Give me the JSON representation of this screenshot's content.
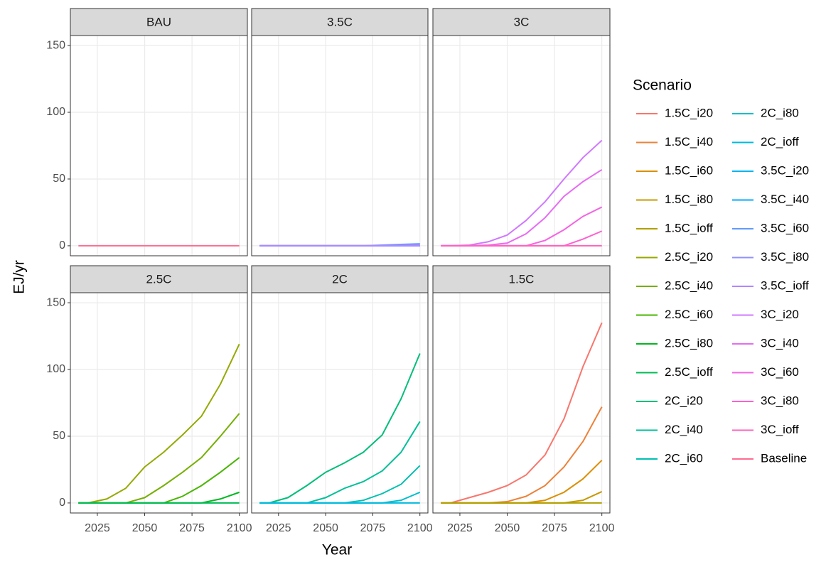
{
  "axis_labels": {
    "x": "Year",
    "y": "EJ/yr"
  },
  "legend": {
    "title": "Scenario"
  },
  "chart_data": [
    {
      "type": "line",
      "title": "BAU",
      "x": [
        2015,
        2020,
        2030,
        2040,
        2050,
        2060,
        2070,
        2080,
        2090,
        2100
      ],
      "xlim": [
        2010.75,
        2104.25
      ],
      "xticks": [
        2025,
        2050,
        2075,
        2100
      ],
      "ylim": [
        -7.5,
        157.5
      ],
      "yticks": [
        0,
        50,
        100,
        150
      ],
      "grid": true,
      "series": [
        {
          "name": "Baseline",
          "color": "#FF6C91",
          "values": [
            0,
            0,
            0,
            0,
            0,
            0,
            0,
            0,
            0,
            0
          ]
        }
      ]
    },
    {
      "type": "line",
      "title": "3.5C",
      "x": [
        2015,
        2020,
        2030,
        2040,
        2050,
        2060,
        2070,
        2080,
        2090,
        2100
      ],
      "xlim": [
        2010.75,
        2104.25
      ],
      "xticks": [
        2025,
        2050,
        2075,
        2100
      ],
      "ylim": [
        -7.5,
        157.5
      ],
      "yticks": [
        0,
        50,
        100,
        150
      ],
      "grid": true,
      "series": [
        {
          "name": "3.5C_i20",
          "color": "#00B4F0",
          "values": [
            0,
            0,
            0,
            0,
            0,
            0,
            0,
            0,
            0,
            0
          ]
        },
        {
          "name": "3.5C_i40",
          "color": "#00ABFD",
          "values": [
            0,
            0,
            0,
            0,
            0,
            0,
            0,
            0,
            0,
            0
          ]
        },
        {
          "name": "3.5C_i60",
          "color": "#619CFF",
          "values": [
            0,
            0,
            0,
            0,
            0,
            0,
            0,
            0.5,
            1,
            1.5
          ]
        },
        {
          "name": "3.5C_i80",
          "color": "#8F91FF",
          "values": [
            0,
            0,
            0,
            0,
            0,
            0,
            0,
            0,
            0.3,
            0.8
          ]
        },
        {
          "name": "3.5C_ioff",
          "color": "#B385FF",
          "values": [
            0,
            0,
            0,
            0,
            0,
            0,
            0,
            0,
            0,
            0
          ]
        }
      ]
    },
    {
      "type": "line",
      "title": "3C",
      "x": [
        2015,
        2020,
        2030,
        2040,
        2050,
        2060,
        2070,
        2080,
        2090,
        2100
      ],
      "xlim": [
        2010.75,
        2104.25
      ],
      "xticks": [
        2025,
        2050,
        2075,
        2100
      ],
      "ylim": [
        -7.5,
        157.5
      ],
      "yticks": [
        0,
        50,
        100,
        150
      ],
      "grid": true,
      "series": [
        {
          "name": "3C_i20",
          "color": "#D078FF",
          "values": [
            0,
            0,
            0.5,
            3,
            8,
            19,
            33,
            50,
            66,
            79
          ]
        },
        {
          "name": "3C_i40",
          "color": "#E76BF3",
          "values": [
            0,
            0,
            0,
            0.5,
            2,
            9,
            21,
            37,
            48,
            57
          ]
        },
        {
          "name": "3C_i60",
          "color": "#F564E3",
          "values": [
            0,
            0,
            0,
            0,
            0,
            0,
            4,
            12,
            22,
            29
          ]
        },
        {
          "name": "3C_i80",
          "color": "#FD61D0",
          "values": [
            0,
            0,
            0,
            0,
            0,
            0,
            0,
            0,
            5,
            11
          ]
        },
        {
          "name": "3C_ioff",
          "color": "#FF62BC",
          "values": [
            0,
            0,
            0,
            0,
            0,
            0,
            0,
            0,
            0,
            0
          ]
        }
      ]
    },
    {
      "type": "line",
      "title": "2.5C",
      "x": [
        2015,
        2020,
        2030,
        2040,
        2050,
        2060,
        2070,
        2080,
        2090,
        2100
      ],
      "xlim": [
        2010.75,
        2104.25
      ],
      "xticks": [
        2025,
        2050,
        2075,
        2100
      ],
      "ylim": [
        -7.5,
        157.5
      ],
      "yticks": [
        0,
        50,
        100,
        150
      ],
      "grid": true,
      "series": [
        {
          "name": "2.5C_i20",
          "color": "#96A900",
          "values": [
            0,
            0,
            3,
            11,
            27,
            38,
            51,
            65,
            89,
            119
          ]
        },
        {
          "name": "2.5C_i40",
          "color": "#75AF00",
          "values": [
            0,
            0,
            0,
            0,
            4,
            13,
            23,
            34,
            50,
            67
          ]
        },
        {
          "name": "2.5C_i60",
          "color": "#49B500",
          "values": [
            0,
            0,
            0,
            0,
            0,
            0,
            5,
            13,
            23,
            34
          ]
        },
        {
          "name": "2.5C_i80",
          "color": "#00B81F",
          "values": [
            0,
            0,
            0,
            0,
            0,
            0,
            0,
            0,
            3,
            8
          ]
        },
        {
          "name": "2.5C_ioff",
          "color": "#00BC56",
          "values": [
            0,
            0,
            0,
            0,
            0,
            0,
            0,
            0,
            0,
            0
          ]
        }
      ]
    },
    {
      "type": "line",
      "title": "2C",
      "x": [
        2015,
        2020,
        2030,
        2040,
        2050,
        2060,
        2070,
        2080,
        2090,
        2100
      ],
      "xlim": [
        2010.75,
        2104.25
      ],
      "xticks": [
        2025,
        2050,
        2075,
        2100
      ],
      "ylim": [
        -7.5,
        157.5
      ],
      "yticks": [
        0,
        50,
        100,
        150
      ],
      "grid": true,
      "series": [
        {
          "name": "2C_i20",
          "color": "#00BE7A",
          "values": [
            0,
            0,
            4,
            13,
            23,
            30,
            38,
            51,
            78,
            112
          ]
        },
        {
          "name": "2C_i40",
          "color": "#00C097",
          "values": [
            0,
            0,
            0,
            0,
            4,
            11,
            16,
            24,
            38,
            61
          ]
        },
        {
          "name": "2C_i60",
          "color": "#00C0B2",
          "values": [
            0,
            0,
            0,
            0,
            0,
            0,
            2,
            7,
            14,
            28
          ]
        },
        {
          "name": "2C_i80",
          "color": "#00BECB",
          "values": [
            0,
            0,
            0,
            0,
            0,
            0,
            0,
            0,
            2,
            8
          ]
        },
        {
          "name": "2C_ioff",
          "color": "#00BAE0",
          "values": [
            0,
            0,
            0,
            0,
            0,
            0,
            0,
            0,
            0,
            0
          ]
        }
      ]
    },
    {
      "type": "line",
      "title": "1.5C",
      "x": [
        2015,
        2020,
        2030,
        2040,
        2050,
        2060,
        2070,
        2080,
        2090,
        2100
      ],
      "xlim": [
        2010.75,
        2104.25
      ],
      "xticks": [
        2025,
        2050,
        2075,
        2100
      ],
      "ylim": [
        -7.5,
        157.5
      ],
      "yticks": [
        0,
        50,
        100,
        150
      ],
      "grid": true,
      "series": [
        {
          "name": "1.5C_i20",
          "color": "#F8766D",
          "values": [
            0,
            0,
            4,
            8,
            13,
            21,
            36,
            63,
            102,
            135
          ]
        },
        {
          "name": "1.5C_i40",
          "color": "#EC8239",
          "values": [
            0,
            0,
            0,
            0,
            1,
            5,
            13,
            27,
            46,
            72
          ]
        },
        {
          "name": "1.5C_i60",
          "color": "#DB8E00",
          "values": [
            0,
            0,
            0,
            0,
            0,
            0,
            2,
            8,
            18,
            32
          ]
        },
        {
          "name": "1.5C_i80",
          "color": "#C79800",
          "values": [
            0,
            0,
            0,
            0,
            0,
            0,
            0,
            0,
            2,
            8.5
          ]
        },
        {
          "name": "1.5C_ioff",
          "color": "#B0A100",
          "values": [
            0,
            0,
            0,
            0,
            0,
            0,
            0,
            0,
            0,
            0
          ]
        }
      ]
    }
  ]
}
